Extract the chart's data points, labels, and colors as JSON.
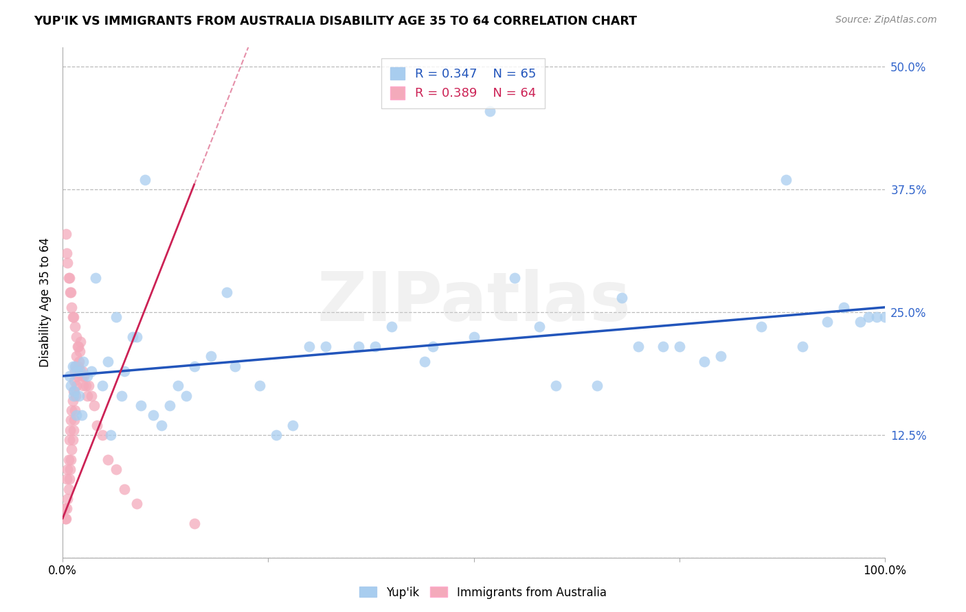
{
  "title": "YUP'IK VS IMMIGRANTS FROM AUSTRALIA DISABILITY AGE 35 TO 64 CORRELATION CHART",
  "source": "Source: ZipAtlas.com",
  "ylabel": "Disability Age 35 to 64",
  "xlim": [
    0.0,
    1.0
  ],
  "ylim": [
    0.0,
    0.52
  ],
  "r_blue": 0.347,
  "n_blue": 65,
  "r_pink": 0.389,
  "n_pink": 64,
  "blue_color": "#A8CDEF",
  "pink_color": "#F4AABB",
  "blue_line_color": "#2255BB",
  "pink_line_color": "#CC2255",
  "watermark": "ZIPatlas",
  "legend_label_blue": "Yup'ik",
  "legend_label_pink": "Immigrants from Australia",
  "blue_x": [
    0.008,
    0.012,
    0.015,
    0.018,
    0.022,
    0.01,
    0.025,
    0.02,
    0.014,
    0.03,
    0.04,
    0.055,
    0.065,
    0.075,
    0.09,
    0.1,
    0.12,
    0.14,
    0.16,
    0.18,
    0.21,
    0.24,
    0.28,
    0.32,
    0.36,
    0.4,
    0.45,
    0.5,
    0.55,
    0.6,
    0.65,
    0.7,
    0.75,
    0.8,
    0.85,
    0.9,
    0.95,
    0.98,
    0.99,
    1.0,
    0.013,
    0.017,
    0.023,
    0.035,
    0.048,
    0.058,
    0.072,
    0.085,
    0.095,
    0.11,
    0.13,
    0.15,
    0.2,
    0.26,
    0.3,
    0.38,
    0.44,
    0.52,
    0.58,
    0.68,
    0.73,
    0.78,
    0.88,
    0.93,
    0.97
  ],
  "blue_y": [
    0.185,
    0.195,
    0.195,
    0.19,
    0.19,
    0.175,
    0.2,
    0.165,
    0.17,
    0.185,
    0.285,
    0.2,
    0.245,
    0.19,
    0.225,
    0.385,
    0.135,
    0.175,
    0.195,
    0.205,
    0.195,
    0.175,
    0.135,
    0.215,
    0.215,
    0.235,
    0.215,
    0.225,
    0.285,
    0.175,
    0.175,
    0.215,
    0.215,
    0.205,
    0.235,
    0.215,
    0.255,
    0.245,
    0.245,
    0.245,
    0.165,
    0.145,
    0.145,
    0.19,
    0.175,
    0.125,
    0.165,
    0.225,
    0.155,
    0.145,
    0.155,
    0.165,
    0.27,
    0.125,
    0.215,
    0.215,
    0.2,
    0.455,
    0.235,
    0.265,
    0.215,
    0.2,
    0.385,
    0.24,
    0.24
  ],
  "pink_x": [
    0.002,
    0.003,
    0.004,
    0.005,
    0.005,
    0.006,
    0.006,
    0.007,
    0.007,
    0.008,
    0.008,
    0.009,
    0.009,
    0.01,
    0.01,
    0.011,
    0.011,
    0.012,
    0.012,
    0.013,
    0.013,
    0.014,
    0.014,
    0.015,
    0.015,
    0.016,
    0.016,
    0.017,
    0.017,
    0.018,
    0.018,
    0.019,
    0.02,
    0.021,
    0.022,
    0.023,
    0.024,
    0.025,
    0.026,
    0.028,
    0.03,
    0.032,
    0.035,
    0.038,
    0.042,
    0.048,
    0.055,
    0.065,
    0.075,
    0.09,
    0.005,
    0.007,
    0.009,
    0.011,
    0.013,
    0.015,
    0.017,
    0.019,
    0.004,
    0.006,
    0.008,
    0.01,
    0.012,
    0.16
  ],
  "pink_y": [
    0.05,
    0.04,
    0.04,
    0.05,
    0.08,
    0.06,
    0.09,
    0.07,
    0.1,
    0.08,
    0.12,
    0.09,
    0.13,
    0.1,
    0.14,
    0.11,
    0.15,
    0.12,
    0.16,
    0.13,
    0.17,
    0.14,
    0.18,
    0.15,
    0.19,
    0.165,
    0.195,
    0.175,
    0.205,
    0.185,
    0.215,
    0.195,
    0.2,
    0.21,
    0.22,
    0.185,
    0.19,
    0.175,
    0.185,
    0.175,
    0.165,
    0.175,
    0.165,
    0.155,
    0.135,
    0.125,
    0.1,
    0.09,
    0.07,
    0.055,
    0.31,
    0.285,
    0.27,
    0.255,
    0.245,
    0.235,
    0.225,
    0.215,
    0.33,
    0.3,
    0.285,
    0.27,
    0.245,
    0.035
  ],
  "pink_line_x0": 0.0,
  "pink_line_y0": 0.04,
  "pink_line_x1": 0.16,
  "pink_line_y1": 0.38,
  "blue_line_x0": 0.0,
  "blue_line_y0": 0.185,
  "blue_line_x1": 1.0,
  "blue_line_y1": 0.255
}
